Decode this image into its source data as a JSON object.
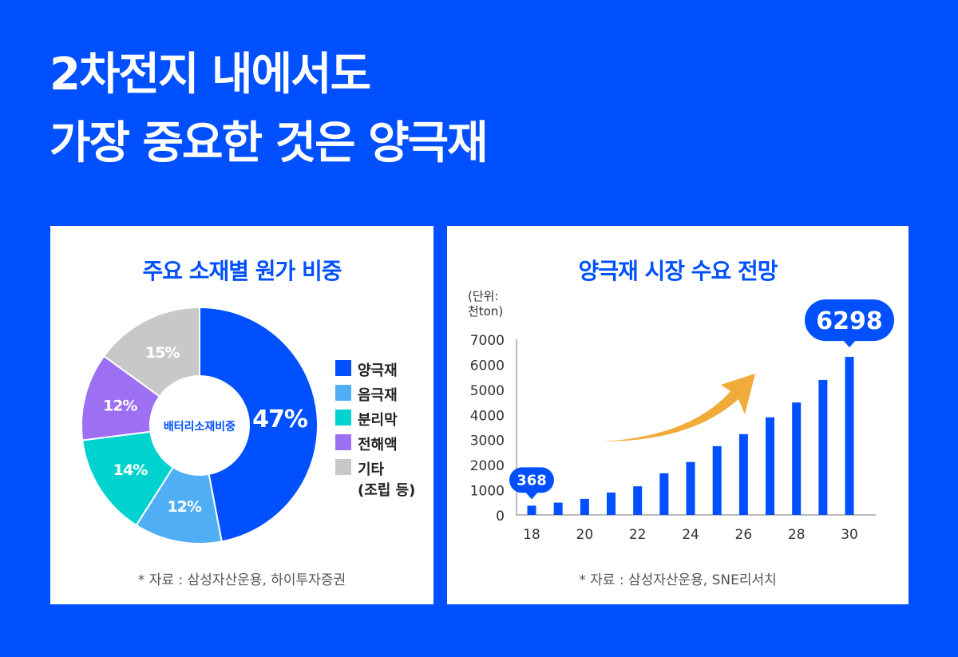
{
  "title": {
    "line1": "2차전지 내에서도",
    "line2": "가장 중요한 것은 양극재"
  },
  "colors": {
    "background": "#0050ff",
    "accent": "#0050ff",
    "arrow": "#f0ab3a"
  },
  "chart_data": [
    {
      "type": "pie",
      "title": "주요 소재별 원가 비중",
      "center_label": "배터리소재비중",
      "categories": [
        "양극재",
        "음극재",
        "분리막",
        "전해액",
        "기타 (조립 등)"
      ],
      "legend_lines": [
        [
          "양극재"
        ],
        [
          "음극재"
        ],
        [
          "분리막"
        ],
        [
          "전해액"
        ],
        [
          "기타",
          "(조립 등)"
        ]
      ],
      "values": [
        47,
        12,
        14,
        12,
        15
      ],
      "labels": [
        "47%",
        "12%",
        "14%",
        "12%",
        "15%"
      ],
      "colors": [
        "#0050ff",
        "#50aef5",
        "#00d3cf",
        "#9d6ff3",
        "#c8c8c8"
      ],
      "legend_position": "right",
      "source": "* 자료 : 삼성자산운용, 하이투자증권"
    },
    {
      "type": "bar",
      "title": "양극재 시장 수요 전망",
      "unit_label": [
        "(단위:",
        "천ton)"
      ],
      "categories": [
        "18",
        "19",
        "20",
        "21",
        "22",
        "23",
        "24",
        "25",
        "26",
        "27",
        "28",
        "29",
        "30"
      ],
      "xtick_labels": [
        "18",
        "20",
        "22",
        "24",
        "26",
        "28",
        "30"
      ],
      "values": [
        368,
        490,
        640,
        890,
        1140,
        1660,
        2110,
        2740,
        3220,
        3890,
        4480,
        5380,
        6298
      ],
      "callouts": [
        {
          "category": "18",
          "text": "368"
        },
        {
          "category": "30",
          "text": "6298"
        }
      ],
      "ylim": [
        0,
        7000
      ],
      "yticks": [
        0,
        1000,
        2000,
        3000,
        4000,
        5000,
        6000,
        7000
      ],
      "color": "#0050ff",
      "grid": false,
      "source": "* 자료 : 삼성자산운용, SNE리서치"
    }
  ]
}
